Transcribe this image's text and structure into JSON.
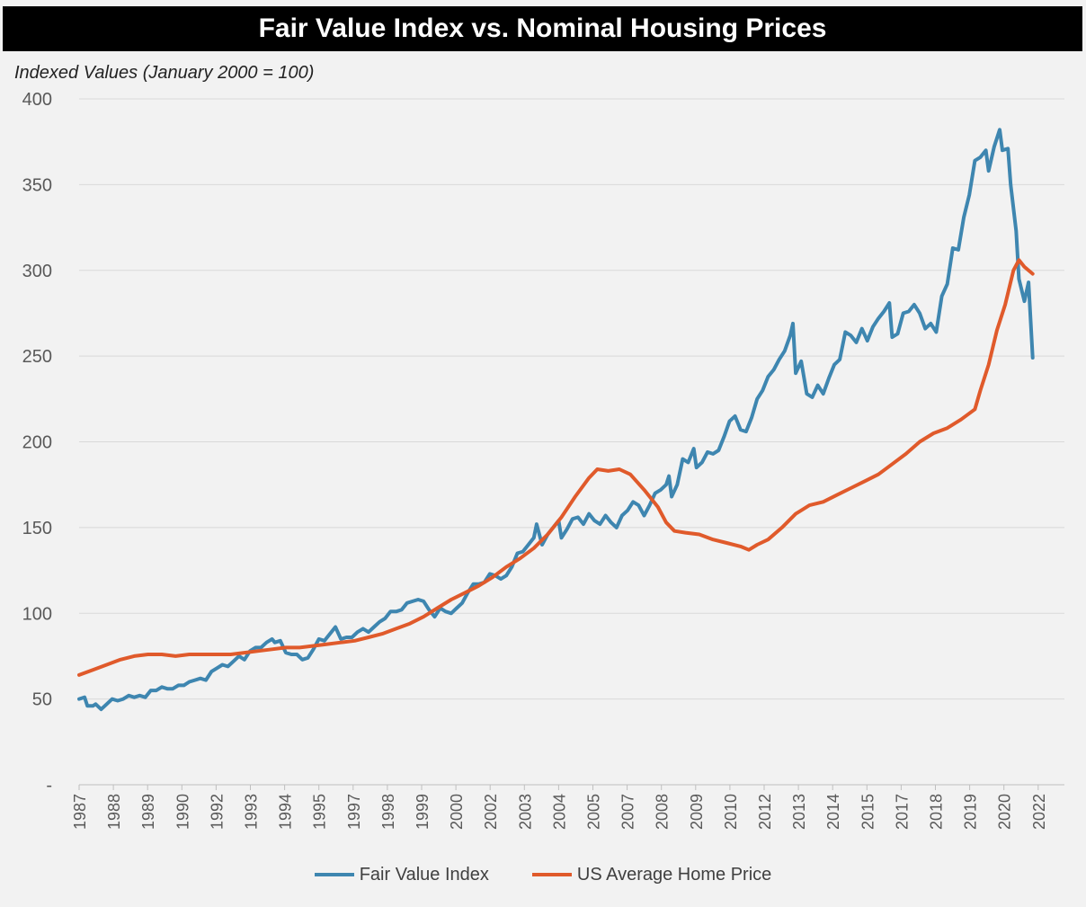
{
  "chart_data": {
    "type": "line",
    "title": "Fair Value Index vs. Nominal Housing Prices",
    "ylabel": "Indexed Values (January 2000 = 100)",
    "xlabel": "",
    "ylim": [
      0,
      400
    ],
    "xlim": [
      1987.0,
      2022.75
    ],
    "grid": "horizontal",
    "legend": "bottom",
    "yticks": [
      {
        "value": 0,
        "label": "-"
      },
      {
        "value": 50,
        "label": "50"
      },
      {
        "value": 100,
        "label": "100"
      },
      {
        "value": 150,
        "label": "150"
      },
      {
        "value": 200,
        "label": "200"
      },
      {
        "value": 250,
        "label": "250"
      },
      {
        "value": 300,
        "label": "300"
      },
      {
        "value": 350,
        "label": "350"
      },
      {
        "value": 400,
        "label": "400"
      }
    ],
    "xticks": [
      {
        "value": 1987.0,
        "label": "1987"
      },
      {
        "value": 1988.0,
        "label": "1988"
      },
      {
        "value": 1989.0,
        "label": "1989"
      },
      {
        "value": 1990.0,
        "label": "1990"
      },
      {
        "value": 1991.0,
        "label": "1992"
      },
      {
        "value": 1992.0,
        "label": "1993"
      },
      {
        "value": 1993.0,
        "label": "1994"
      },
      {
        "value": 1994.0,
        "label": "1995"
      },
      {
        "value": 1995.0,
        "label": "1997"
      },
      {
        "value": 1996.0,
        "label": "1998"
      },
      {
        "value": 1997.0,
        "label": "1999"
      },
      {
        "value": 1998.0,
        "label": "2000"
      },
      {
        "value": 1999.0,
        "label": "2002"
      },
      {
        "value": 2000.0,
        "label": "2003"
      },
      {
        "value": 2001.0,
        "label": "2004"
      },
      {
        "value": 2002.0,
        "label": "2005"
      },
      {
        "value": 2003.0,
        "label": "2007"
      },
      {
        "value": 2004.0,
        "label": "2008"
      },
      {
        "value": 2005.0,
        "label": "2009"
      },
      {
        "value": 2006.0,
        "label": "2010"
      },
      {
        "value": 2007.0,
        "label": "2012"
      },
      {
        "value": 2008.0,
        "label": "2013"
      },
      {
        "value": 2009.0,
        "label": "2014"
      },
      {
        "value": 2010.0,
        "label": "2015"
      },
      {
        "value": 2011.0,
        "label": "2017"
      },
      {
        "value": 2012.0,
        "label": "2018"
      },
      {
        "value": 2013.0,
        "label": "2019"
      },
      {
        "value": 2014.0,
        "label": "2020"
      },
      {
        "value": 2015.0,
        "label": "2022"
      }
    ],
    "series": [
      {
        "name": "Fair Value Index",
        "color": "#3e86b0",
        "points": [
          [
            1987.0,
            50
          ],
          [
            1987.2,
            51
          ],
          [
            1987.3,
            46
          ],
          [
            1987.5,
            46
          ],
          [
            1987.6,
            47
          ],
          [
            1987.8,
            44
          ],
          [
            1988.0,
            47
          ],
          [
            1988.2,
            50
          ],
          [
            1988.4,
            49
          ],
          [
            1988.6,
            50
          ],
          [
            1988.8,
            52
          ],
          [
            1989.0,
            51
          ],
          [
            1989.2,
            52
          ],
          [
            1989.4,
            51
          ],
          [
            1989.6,
            55
          ],
          [
            1989.8,
            55
          ],
          [
            1990.0,
            57
          ],
          [
            1990.2,
            56
          ],
          [
            1990.4,
            56
          ],
          [
            1990.6,
            58
          ],
          [
            1990.8,
            58
          ],
          [
            1991.0,
            60
          ],
          [
            1991.2,
            61
          ],
          [
            1991.4,
            62
          ],
          [
            1991.6,
            61
          ],
          [
            1991.8,
            66
          ],
          [
            1992.0,
            68
          ],
          [
            1992.2,
            70
          ],
          [
            1992.4,
            69
          ],
          [
            1992.6,
            72
          ],
          [
            1992.8,
            75
          ],
          [
            1993.0,
            73
          ],
          [
            1993.2,
            78
          ],
          [
            1993.4,
            80
          ],
          [
            1993.6,
            80
          ],
          [
            1993.8,
            83
          ],
          [
            1994.0,
            85
          ],
          [
            1994.1,
            83
          ],
          [
            1994.3,
            84
          ],
          [
            1994.5,
            77
          ],
          [
            1994.7,
            76
          ],
          [
            1994.9,
            76
          ],
          [
            1995.1,
            73
          ],
          [
            1995.3,
            74
          ],
          [
            1995.5,
            79
          ],
          [
            1995.7,
            85
          ],
          [
            1995.9,
            84
          ],
          [
            1996.1,
            88
          ],
          [
            1996.3,
            92
          ],
          [
            1996.5,
            85
          ],
          [
            1996.7,
            86
          ],
          [
            1996.9,
            86
          ],
          [
            1997.1,
            89
          ],
          [
            1997.3,
            91
          ],
          [
            1997.5,
            89
          ],
          [
            1997.7,
            92
          ],
          [
            1997.9,
            95
          ],
          [
            1998.1,
            97
          ],
          [
            1998.3,
            101
          ],
          [
            1998.5,
            101
          ],
          [
            1998.7,
            102
          ],
          [
            1998.9,
            106
          ],
          [
            1999.1,
            107
          ],
          [
            1999.3,
            108
          ],
          [
            1999.5,
            107
          ],
          [
            1999.7,
            102
          ],
          [
            1999.9,
            98
          ],
          [
            2000.1,
            103
          ],
          [
            2000.3,
            101
          ],
          [
            2000.5,
            100
          ],
          [
            2000.7,
            103
          ],
          [
            2000.9,
            106
          ],
          [
            2001.1,
            112
          ],
          [
            2001.3,
            117
          ],
          [
            2001.5,
            117
          ],
          [
            2001.7,
            118
          ],
          [
            2001.9,
            123
          ],
          [
            2002.1,
            122
          ],
          [
            2002.3,
            120
          ],
          [
            2002.5,
            122
          ],
          [
            2002.7,
            127
          ],
          [
            2002.9,
            135
          ],
          [
            2003.1,
            136
          ],
          [
            2003.3,
            140
          ],
          [
            2003.5,
            144
          ],
          [
            2003.6,
            152
          ],
          [
            2003.8,
            140
          ],
          [
            2004.0,
            146
          ],
          [
            2004.2,
            150
          ],
          [
            2004.4,
            154
          ],
          [
            2004.5,
            144
          ],
          [
            2004.7,
            149
          ],
          [
            2004.9,
            155
          ],
          [
            2005.1,
            156
          ],
          [
            2005.3,
            152
          ],
          [
            2005.5,
            158
          ],
          [
            2005.7,
            154
          ],
          [
            2005.9,
            152
          ],
          [
            2006.1,
            157
          ],
          [
            2006.3,
            153
          ],
          [
            2006.5,
            150
          ],
          [
            2006.7,
            157
          ],
          [
            2006.9,
            160
          ],
          [
            2007.1,
            165
          ],
          [
            2007.3,
            163
          ],
          [
            2007.5,
            157
          ],
          [
            2007.7,
            163
          ],
          [
            2007.9,
            170
          ],
          [
            2008.1,
            172
          ],
          [
            2008.3,
            175
          ],
          [
            2008.4,
            180
          ],
          [
            2008.5,
            168
          ],
          [
            2008.7,
            175
          ],
          [
            2008.9,
            190
          ],
          [
            2009.1,
            188
          ],
          [
            2009.3,
            196
          ],
          [
            2009.4,
            185
          ],
          [
            2009.6,
            188
          ],
          [
            2009.8,
            194
          ],
          [
            2010.0,
            193
          ],
          [
            2010.2,
            195
          ],
          [
            2010.4,
            203
          ],
          [
            2010.6,
            212
          ],
          [
            2010.8,
            215
          ],
          [
            2011.0,
            207
          ],
          [
            2011.2,
            206
          ],
          [
            2011.4,
            214
          ],
          [
            2011.6,
            225
          ],
          [
            2011.8,
            230
          ],
          [
            2012.0,
            238
          ],
          [
            2012.2,
            242
          ],
          [
            2012.4,
            248
          ],
          [
            2012.6,
            253
          ],
          [
            2012.8,
            262
          ],
          [
            2012.9,
            269
          ],
          [
            2013.0,
            240
          ],
          [
            2013.2,
            247
          ],
          [
            2013.4,
            228
          ],
          [
            2013.6,
            226
          ],
          [
            2013.8,
            233
          ],
          [
            2014.0,
            228
          ],
          [
            2014.2,
            237
          ],
          [
            2014.4,
            245
          ],
          [
            2014.6,
            248
          ],
          [
            2014.8,
            264
          ],
          [
            2015.0,
            262
          ],
          [
            2015.2,
            258
          ],
          [
            2015.4,
            266
          ],
          [
            2015.6,
            259
          ],
          [
            2015.8,
            267
          ],
          [
            2016.0,
            272
          ],
          [
            2016.2,
            276
          ],
          [
            2016.4,
            281
          ],
          [
            2016.5,
            261
          ],
          [
            2016.7,
            263
          ],
          [
            2016.9,
            275
          ],
          [
            2017.1,
            276
          ],
          [
            2017.3,
            280
          ],
          [
            2017.5,
            275
          ],
          [
            2017.7,
            266
          ],
          [
            2017.9,
            269
          ],
          [
            2018.1,
            264
          ],
          [
            2018.3,
            285
          ],
          [
            2018.5,
            292
          ],
          [
            2018.7,
            313
          ],
          [
            2018.9,
            312
          ],
          [
            2019.1,
            331
          ],
          [
            2019.3,
            344
          ],
          [
            2019.5,
            364
          ],
          [
            2019.7,
            366
          ],
          [
            2019.9,
            370
          ],
          [
            2020.0,
            358
          ],
          [
            2020.2,
            372
          ],
          [
            2020.4,
            382
          ],
          [
            2020.5,
            370
          ],
          [
            2020.7,
            371
          ],
          [
            2020.8,
            350
          ],
          [
            2021.0,
            323
          ],
          [
            2021.1,
            295
          ],
          [
            2021.3,
            282
          ],
          [
            2021.45,
            293
          ],
          [
            2021.6,
            249
          ]
        ]
      },
      {
        "name": "US Average Home Price",
        "color": "#e05a2b",
        "points": [
          [
            1987.0,
            64
          ],
          [
            1987.5,
            67
          ],
          [
            1988.0,
            70
          ],
          [
            1988.5,
            73
          ],
          [
            1989.0,
            75
          ],
          [
            1989.5,
            76
          ],
          [
            1990.0,
            76
          ],
          [
            1990.5,
            75
          ],
          [
            1991.0,
            76
          ],
          [
            1991.5,
            76
          ],
          [
            1992.0,
            76
          ],
          [
            1992.5,
            76
          ],
          [
            1993.0,
            77
          ],
          [
            1993.5,
            78
          ],
          [
            1994.0,
            79
          ],
          [
            1994.5,
            80
          ],
          [
            1995.0,
            80
          ],
          [
            1995.5,
            81
          ],
          [
            1996.0,
            82
          ],
          [
            1996.5,
            83
          ],
          [
            1997.0,
            84
          ],
          [
            1997.5,
            86
          ],
          [
            1998.0,
            88
          ],
          [
            1998.5,
            91
          ],
          [
            1999.0,
            94
          ],
          [
            1999.5,
            98
          ],
          [
            2000.0,
            103
          ],
          [
            2000.5,
            108
          ],
          [
            2001.0,
            112
          ],
          [
            2001.5,
            116
          ],
          [
            2002.0,
            121
          ],
          [
            2002.5,
            127
          ],
          [
            2003.0,
            132
          ],
          [
            2003.5,
            138
          ],
          [
            2004.0,
            146
          ],
          [
            2004.5,
            156
          ],
          [
            2005.0,
            168
          ],
          [
            2005.5,
            179
          ],
          [
            2005.8,
            184
          ],
          [
            2006.2,
            183
          ],
          [
            2006.6,
            184
          ],
          [
            2007.0,
            181
          ],
          [
            2007.5,
            172
          ],
          [
            2008.0,
            162
          ],
          [
            2008.3,
            153
          ],
          [
            2008.6,
            148
          ],
          [
            2009.0,
            147
          ],
          [
            2009.5,
            146
          ],
          [
            2010.0,
            143
          ],
          [
            2010.5,
            141
          ],
          [
            2011.0,
            139
          ],
          [
            2011.3,
            137
          ],
          [
            2011.6,
            140
          ],
          [
            2012.0,
            143
          ],
          [
            2012.5,
            150
          ],
          [
            2013.0,
            158
          ],
          [
            2013.5,
            163
          ],
          [
            2014.0,
            165
          ],
          [
            2014.5,
            169
          ],
          [
            2015.0,
            173
          ],
          [
            2015.5,
            177
          ],
          [
            2016.0,
            181
          ],
          [
            2016.5,
            187
          ],
          [
            2017.0,
            193
          ],
          [
            2017.5,
            200
          ],
          [
            2018.0,
            205
          ],
          [
            2018.5,
            208
          ],
          [
            2019.0,
            213
          ],
          [
            2019.5,
            219
          ],
          [
            2019.7,
            230
          ],
          [
            2020.0,
            245
          ],
          [
            2020.3,
            265
          ],
          [
            2020.6,
            280
          ],
          [
            2020.9,
            300
          ],
          [
            2021.1,
            306
          ],
          [
            2021.3,
            302
          ],
          [
            2021.6,
            298
          ]
        ]
      }
    ]
  }
}
